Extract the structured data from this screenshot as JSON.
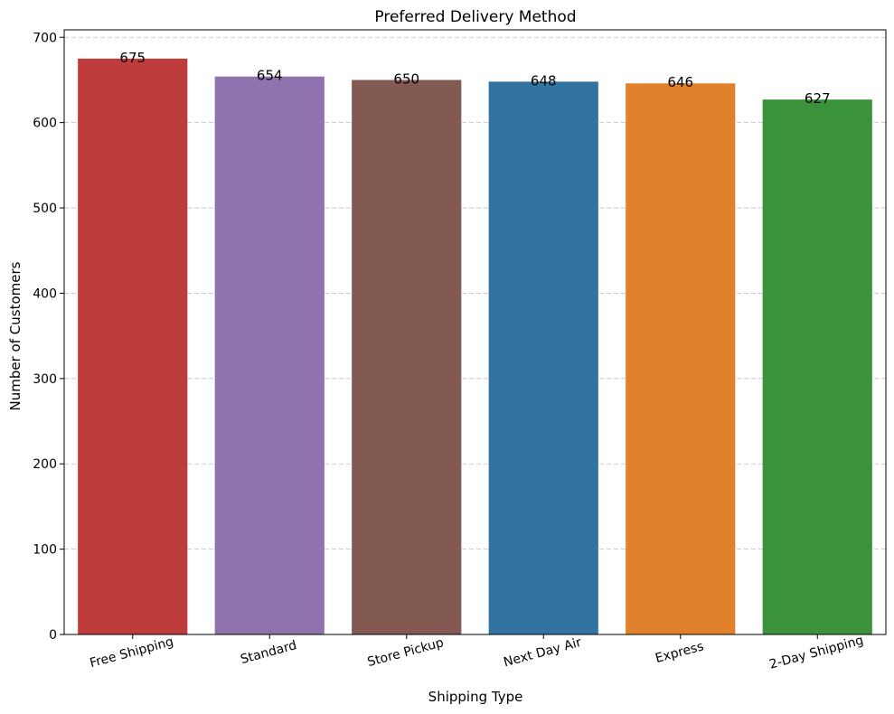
{
  "chart_data": {
    "type": "bar",
    "title": "Preferred Delivery Method",
    "xlabel": "Shipping Type",
    "ylabel": "Number of Customers",
    "categories": [
      "Free Shipping",
      "Standard",
      "Store Pickup",
      "Next Day Air",
      "Express",
      "2-Day Shipping"
    ],
    "values": [
      675,
      654,
      650,
      648,
      646,
      627
    ],
    "data_labels": [
      "675",
      "654",
      "650",
      "648",
      "646",
      "627"
    ],
    "colors": [
      "#bf3c3d",
      "#9072ae",
      "#825a52",
      "#3274a1",
      "#e1812c",
      "#3a923a"
    ],
    "ylim": [
      0,
      708.75
    ],
    "yticks": [
      0,
      100,
      200,
      300,
      400,
      500,
      600,
      700
    ],
    "ytick_labels": [
      "0",
      "100",
      "200",
      "300",
      "400",
      "500",
      "600",
      "700"
    ],
    "grid": true,
    "grid_axis": "y",
    "xtick_rotation": 15
  }
}
